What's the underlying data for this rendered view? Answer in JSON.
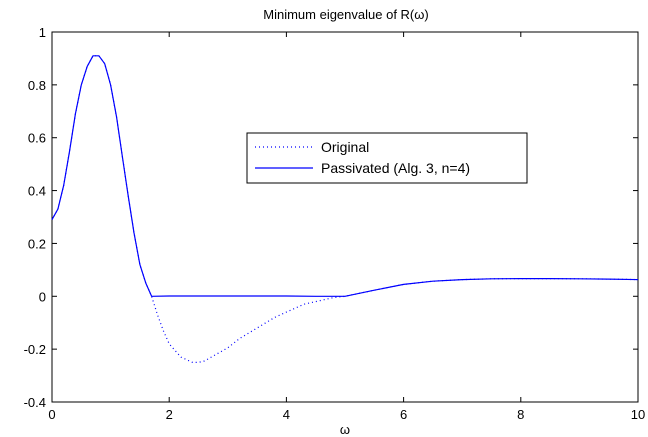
{
  "chart_data": {
    "type": "line",
    "title": "Minimum eigenvalue of R(ω)",
    "xlabel": "ω",
    "ylabel": "",
    "xlim": [
      0,
      10
    ],
    "ylim": [
      -0.4,
      1
    ],
    "xticks": [
      "0",
      "2",
      "4",
      "6",
      "8",
      "10"
    ],
    "yticks": [
      "-0.4",
      "-0.2",
      "0",
      "0.2",
      "0.4",
      "0.6",
      "0.8",
      "1"
    ],
    "grid": false,
    "legend_position": "center-right",
    "series": [
      {
        "name": "Original",
        "style": "dotted",
        "color": "#0000ff",
        "x": [
          0,
          0.1,
          0.2,
          0.3,
          0.4,
          0.5,
          0.6,
          0.7,
          0.8,
          0.9,
          1.0,
          1.1,
          1.2,
          1.3,
          1.4,
          1.5,
          1.6,
          1.7,
          1.8,
          1.9,
          2.0,
          2.2,
          2.4,
          2.5,
          2.6,
          2.8,
          3.0,
          3.2,
          3.5,
          3.8,
          4.0,
          4.3,
          4.6,
          4.8,
          5.0,
          5.5,
          6.0,
          6.5,
          7.0,
          7.5,
          8.0,
          8.5,
          9.0,
          9.5,
          10.0
        ],
        "y": [
          0.29,
          0.33,
          0.42,
          0.55,
          0.69,
          0.8,
          0.87,
          0.91,
          0.91,
          0.88,
          0.8,
          0.68,
          0.53,
          0.38,
          0.24,
          0.12,
          0.05,
          0.0,
          -0.07,
          -0.13,
          -0.18,
          -0.23,
          -0.25,
          -0.25,
          -0.245,
          -0.22,
          -0.195,
          -0.16,
          -0.12,
          -0.08,
          -0.06,
          -0.03,
          -0.015,
          -0.005,
          0.0,
          0.023,
          0.045,
          0.057,
          0.063,
          0.066,
          0.067,
          0.067,
          0.066,
          0.065,
          0.063
        ]
      },
      {
        "name": "Passivated (Alg. 3, n=4)",
        "style": "solid",
        "color": "#0000ff",
        "x": [
          0,
          0.1,
          0.2,
          0.3,
          0.4,
          0.5,
          0.6,
          0.7,
          0.8,
          0.9,
          1.0,
          1.1,
          1.2,
          1.3,
          1.4,
          1.5,
          1.6,
          1.7,
          2.0,
          2.5,
          3.0,
          3.5,
          4.0,
          4.5,
          5.0,
          5.5,
          6.0,
          6.5,
          7.0,
          7.5,
          8.0,
          8.5,
          9.0,
          9.5,
          10.0
        ],
        "y": [
          0.29,
          0.33,
          0.42,
          0.55,
          0.69,
          0.8,
          0.87,
          0.91,
          0.91,
          0.88,
          0.8,
          0.68,
          0.53,
          0.38,
          0.24,
          0.12,
          0.05,
          0.0,
          0.001,
          0.001,
          0.001,
          0.001,
          0.001,
          0.0,
          0.0,
          0.023,
          0.045,
          0.057,
          0.063,
          0.066,
          0.067,
          0.067,
          0.066,
          0.065,
          0.063
        ]
      }
    ]
  }
}
